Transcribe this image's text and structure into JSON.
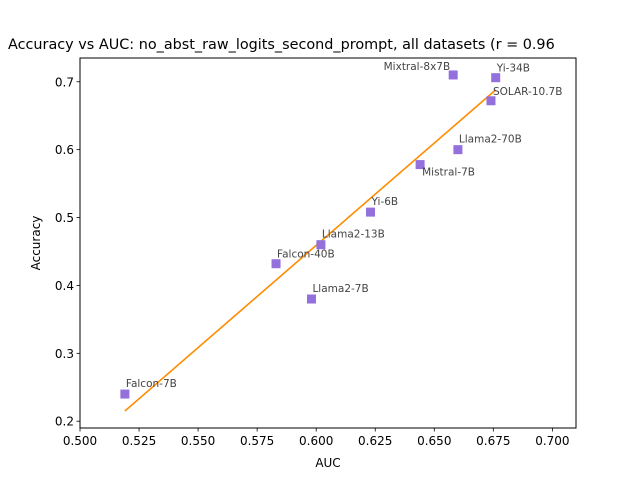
{
  "chart_data": {
    "type": "scatter",
    "title": "Accuracy vs AUC: no_abst_raw_logits_second_prompt, all datasets (r = 0.96",
    "xlabel": "AUC",
    "ylabel": "Accuracy",
    "xlim": [
      0.5,
      0.71
    ],
    "ylim": [
      0.19,
      0.735
    ],
    "xticks": [
      "0.500",
      "0.525",
      "0.550",
      "0.575",
      "0.600",
      "0.625",
      "0.650",
      "0.675",
      "0.700"
    ],
    "yticks": [
      "0.2",
      "0.3",
      "0.4",
      "0.5",
      "0.6",
      "0.7"
    ],
    "grid": false,
    "colors": {
      "points": "#9370DB",
      "fit_line": "#FF8C00",
      "labels": "#444444"
    },
    "points": [
      {
        "label": "Falcon-7B",
        "x": 0.519,
        "y": 0.24
      },
      {
        "label": "Falcon-40B",
        "x": 0.583,
        "y": 0.432
      },
      {
        "label": "Llama2-7B",
        "x": 0.598,
        "y": 0.38
      },
      {
        "label": "Llama2-13B",
        "x": 0.602,
        "y": 0.46
      },
      {
        "label": "Yi-6B",
        "x": 0.623,
        "y": 0.508
      },
      {
        "label": "Mistral-7B",
        "x": 0.644,
        "y": 0.578
      },
      {
        "label": "Mixtral-8x7B",
        "x": 0.658,
        "y": 0.71
      },
      {
        "label": "Llama2-70B",
        "x": 0.66,
        "y": 0.6
      },
      {
        "label": "SOLAR-10.7B",
        "x": 0.674,
        "y": 0.672
      },
      {
        "label": "Yi-34B",
        "x": 0.676,
        "y": 0.706
      }
    ],
    "fit_line": {
      "x": [
        0.519,
        0.676
      ],
      "y": [
        0.215,
        0.688
      ]
    }
  }
}
